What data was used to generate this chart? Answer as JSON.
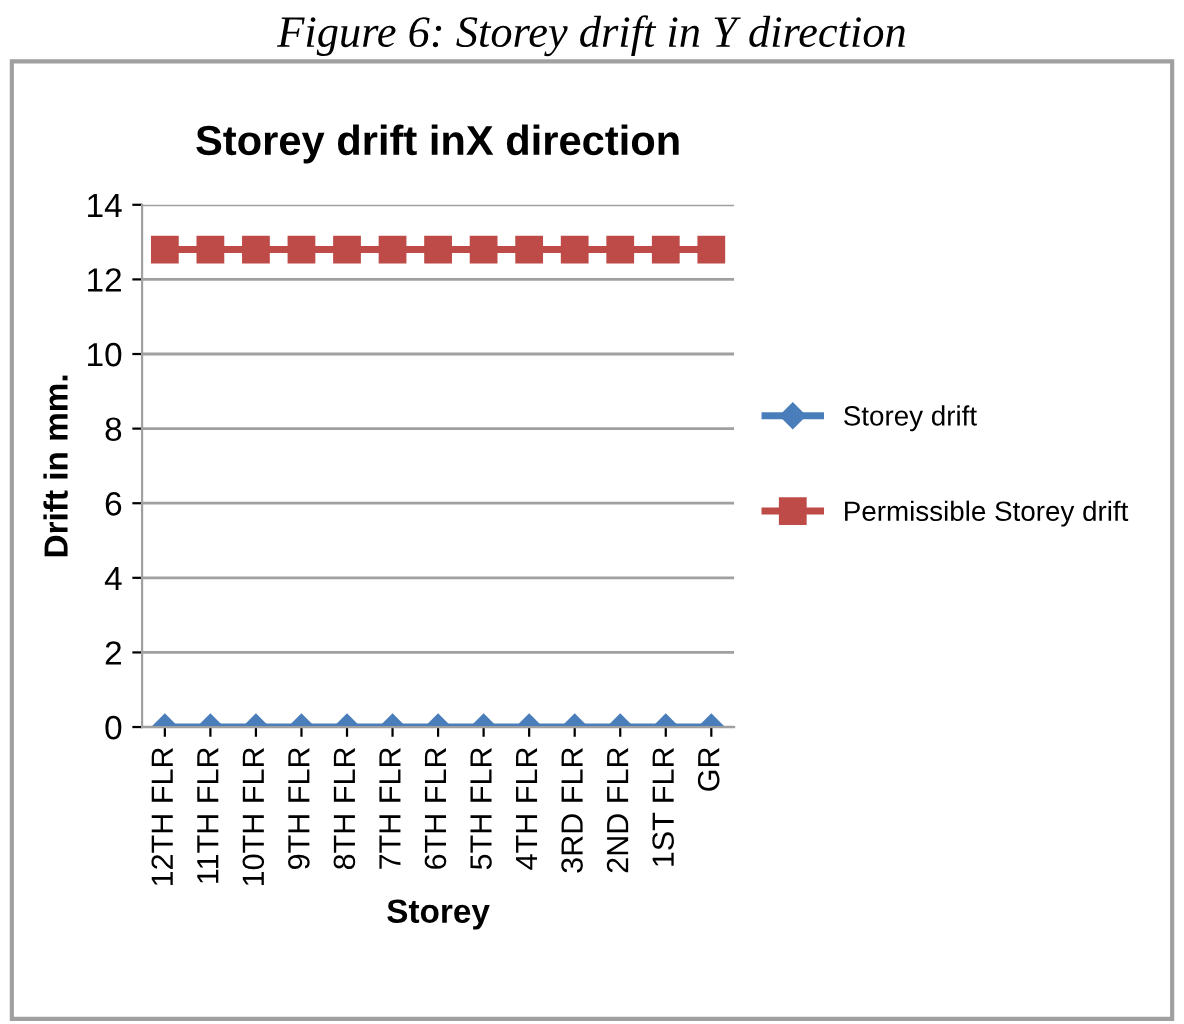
{
  "chart_data": {
    "type": "line",
    "title": "Storey drift inX direction",
    "xlabel": "Storey",
    "ylabel": "Drift in mm.",
    "annotations": [
      "Figure 6: Storey drift in Y direction"
    ],
    "categories": [
      "12TH FLR",
      "11TH FLR",
      "10TH FLR",
      "9TH FLR",
      "8TH FLR",
      "7TH FLR",
      "6TH FLR",
      "5TH FLR",
      "4TH FLR",
      "3RD FLR",
      "2ND FLR",
      "1ST FLR",
      "GR"
    ],
    "series": [
      {
        "name": "Storey drift",
        "color": "#4a7ebb",
        "marker": "diamond",
        "values": [
          0,
          0,
          0,
          0,
          0,
          0,
          0,
          0,
          0,
          0,
          0,
          0,
          0
        ]
      },
      {
        "name": "Permissible Storey drift",
        "color": "#be4b48",
        "marker": "square",
        "values": [
          12.8,
          12.8,
          12.8,
          12.8,
          12.8,
          12.8,
          12.8,
          12.8,
          12.8,
          12.8,
          12.8,
          12.8,
          12.8
        ]
      }
    ],
    "ylim": [
      0,
      14
    ],
    "yticks": [
      0,
      2,
      4,
      6,
      8,
      10,
      12,
      14
    ],
    "grid": "y",
    "legend": "right"
  }
}
